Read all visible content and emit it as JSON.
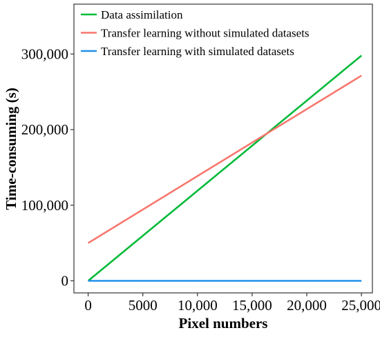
{
  "chart_data": {
    "type": "line",
    "title": "",
    "xlabel": "Pixel numbers",
    "ylabel": "Time-consuming (s)",
    "xlim": [
      -1300,
      26000
    ],
    "ylim": [
      -16000,
      366000
    ],
    "x_ticks": [
      0,
      5000,
      10000,
      15000,
      20000,
      25000
    ],
    "x_tick_labels": [
      "0",
      "5000",
      "10,000",
      "15,000",
      "20,000",
      "25,000"
    ],
    "y_ticks": [
      0,
      100000,
      200000,
      300000
    ],
    "y_tick_labels": [
      "0",
      "100,000",
      "200,000",
      "300,000"
    ],
    "grid": false,
    "legend_position": "top-left",
    "series": [
      {
        "name": "Data assimilation",
        "color": "#00BA38",
        "x": [
          0,
          25000
        ],
        "y": [
          0,
          298000
        ]
      },
      {
        "name": "Transfer learning without simulated datasets",
        "color": "#F8766D",
        "x": [
          0,
          25000
        ],
        "y": [
          50000,
          271500
        ]
      },
      {
        "name": "Transfer learning with simulated datasets",
        "color": "#1E90E8",
        "x": [
          0,
          25000
        ],
        "y": [
          0,
          0
        ]
      }
    ]
  }
}
